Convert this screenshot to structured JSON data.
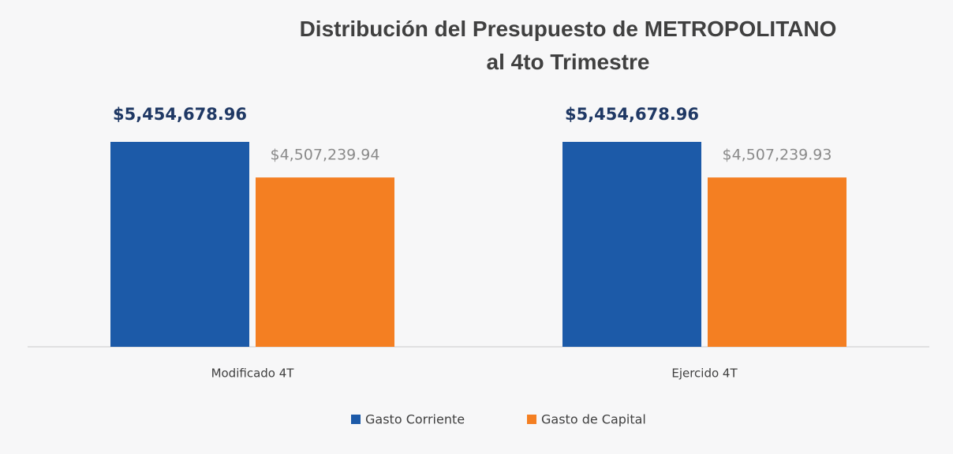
{
  "chart_data": {
    "type": "bar",
    "title": "Distribución  del Presupuesto de METROPOLITANO\nal 4to Trimestre",
    "categories": [
      "Modificado 4T",
      "Ejercido 4T"
    ],
    "series": [
      {
        "name": "Gasto Corriente",
        "color": "#1c5aa8",
        "values": [
          5454678.96,
          5454678.96
        ],
        "value_labels": [
          "$5,454,678.96",
          "$5,454,678.96"
        ]
      },
      {
        "name": "Gasto de Capital",
        "color": "#f47f22",
        "values": [
          4507239.94,
          4507239.93
        ],
        "value_labels": [
          "$4,507,239.94",
          "$4,507,239.93"
        ]
      }
    ]
  }
}
